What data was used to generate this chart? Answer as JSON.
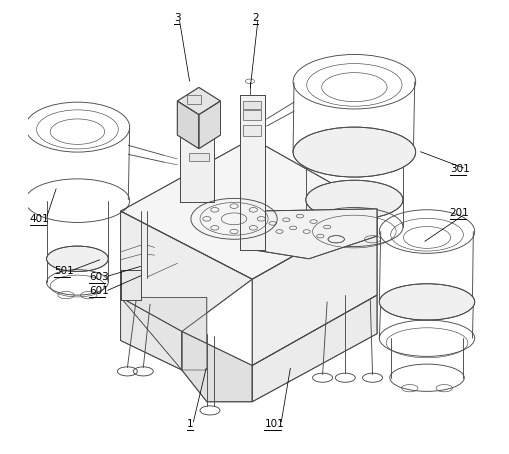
{
  "bg_color": "#ffffff",
  "lc": "#4a4a4a",
  "lc2": "#666666",
  "fig_width": 5.09,
  "fig_height": 4.54,
  "dpi": 100,
  "labels": {
    "1": [
      0.385,
      0.068,
      0.352,
      0.068
    ],
    "2": [
      0.518,
      0.96,
      0.492,
      0.96
    ],
    "3": [
      0.345,
      0.96,
      0.32,
      0.96
    ],
    "101": [
      0.56,
      0.068,
      0.524,
      0.068
    ],
    "201": [
      0.958,
      0.535,
      0.922,
      0.535
    ],
    "301": [
      0.958,
      0.63,
      0.922,
      0.63
    ],
    "401": [
      0.032,
      0.52,
      0.0,
      0.52
    ],
    "501": [
      0.09,
      0.408,
      0.055,
      0.408
    ],
    "601": [
      0.172,
      0.362,
      0.137,
      0.362
    ],
    "603": [
      0.172,
      0.393,
      0.137,
      0.393
    ]
  }
}
